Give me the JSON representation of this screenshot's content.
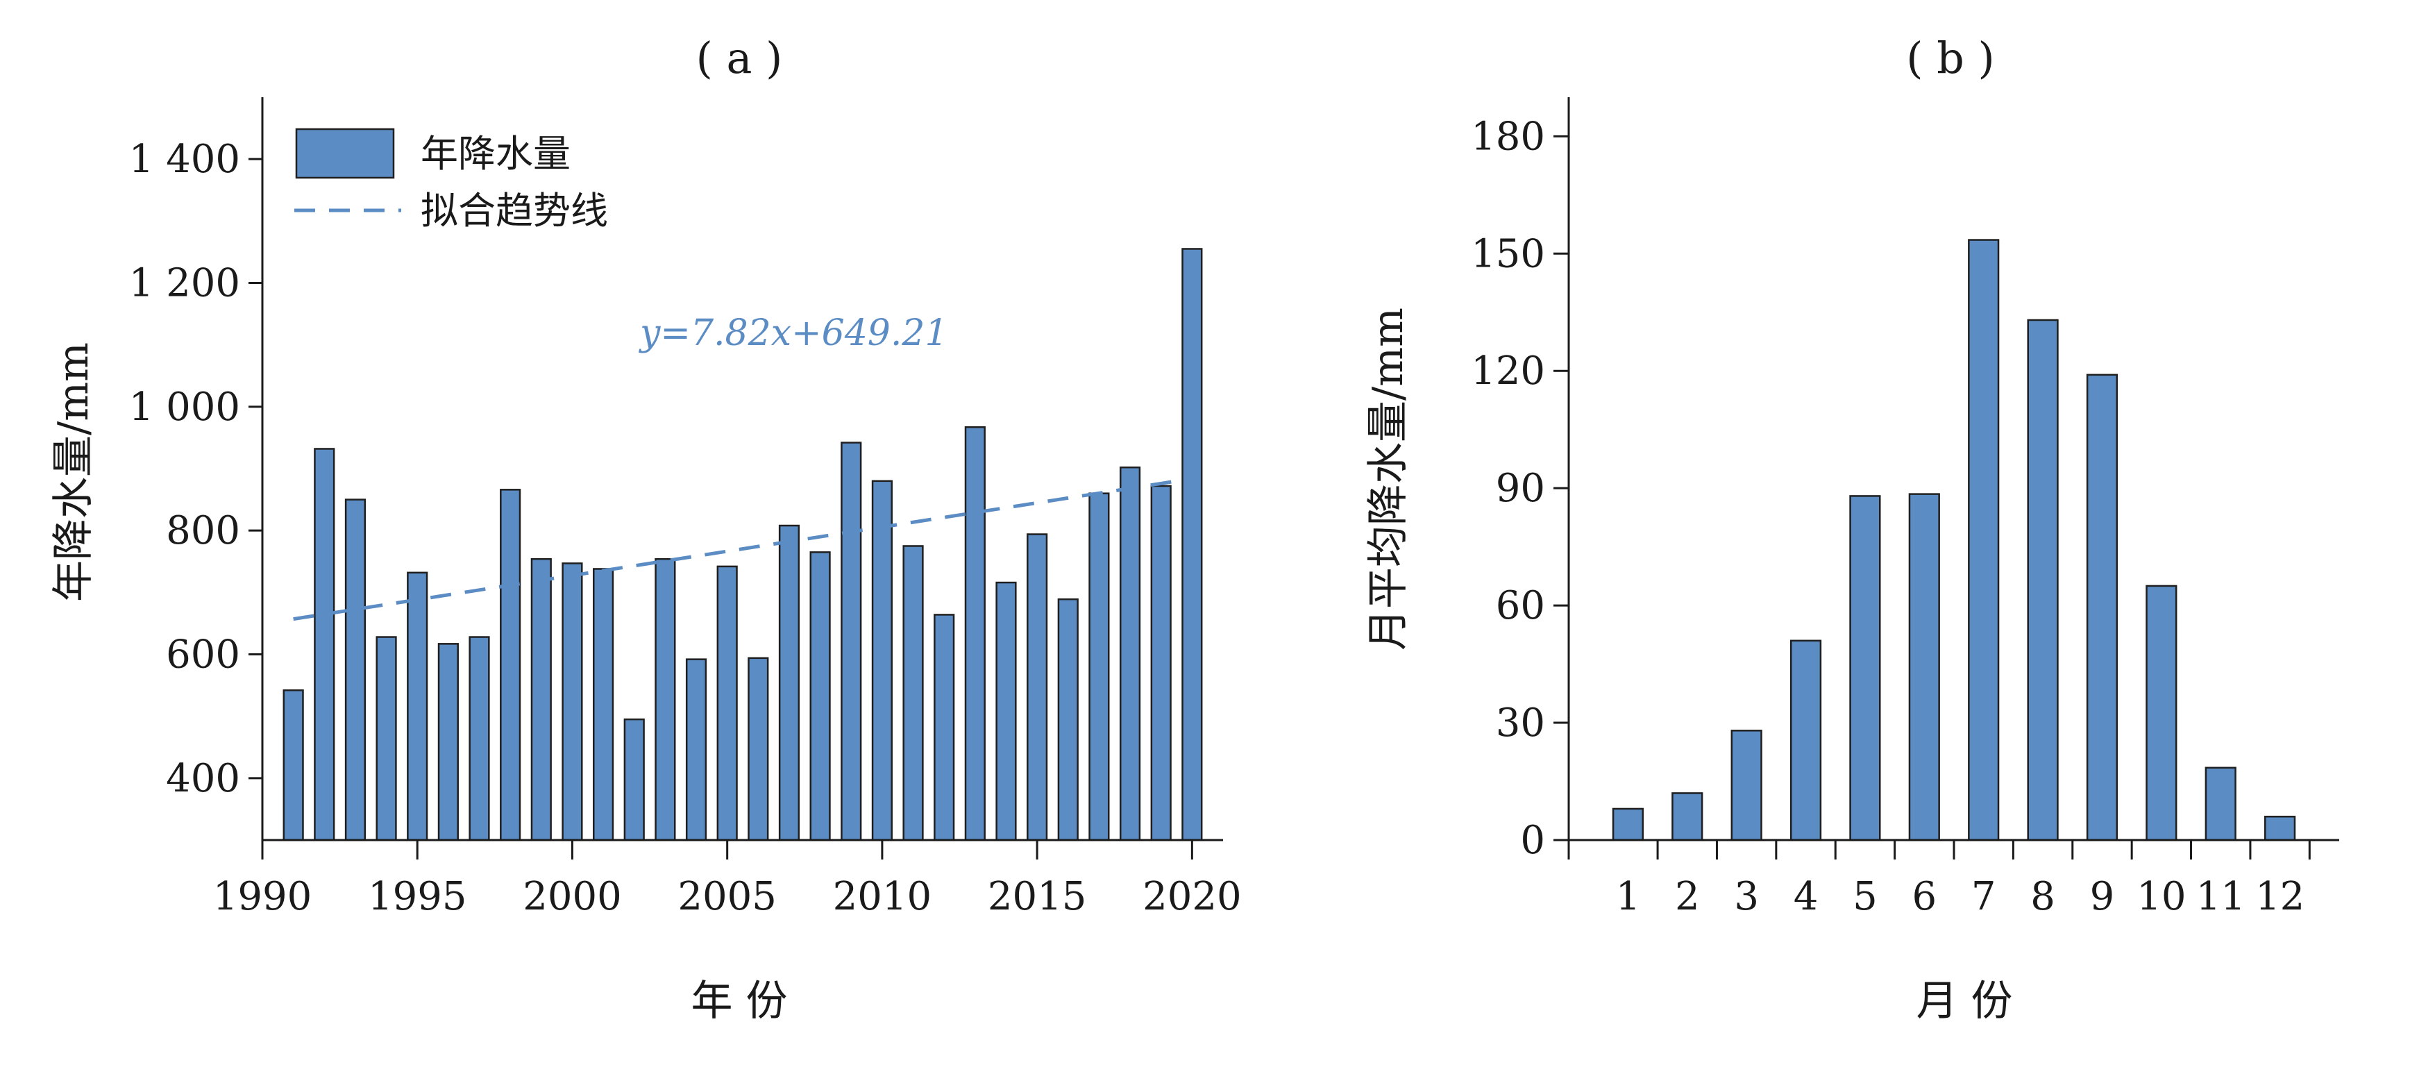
{
  "chart_data": [
    {
      "type": "bar",
      "title": "( a )",
      "xlabel": "年 份",
      "ylabel": "年降水量/mm",
      "x": [
        1991,
        1992,
        1993,
        1994,
        1995,
        1996,
        1997,
        1998,
        1999,
        2000,
        2001,
        2002,
        2003,
        2004,
        2005,
        2006,
        2007,
        2008,
        2009,
        2010,
        2011,
        2012,
        2013,
        2014,
        2015,
        2016,
        2017,
        2018,
        2019,
        2020
      ],
      "values": [
        542,
        932,
        850,
        628,
        732,
        617,
        628,
        866,
        754,
        747,
        738,
        495,
        754,
        592,
        742,
        594,
        808,
        765,
        942,
        880,
        775,
        664,
        967,
        716,
        794,
        689,
        860,
        902,
        872,
        1255
      ],
      "xlim": [
        1990,
        2021
      ],
      "ylim": [
        300,
        1500
      ],
      "xticks": [
        1990,
        1995,
        2000,
        2005,
        2010,
        2015,
        2020
      ],
      "xtick_labels": [
        "1990",
        "1995",
        "2000",
        "2005",
        "2010",
        "2015",
        "2020"
      ],
      "yticks": [
        400,
        600,
        800,
        1000,
        1200,
        1400
      ],
      "ytick_labels": [
        "400",
        "600",
        "800",
        "1 000",
        "1 200",
        "1 400"
      ],
      "legend": {
        "bar_label": "年降水量",
        "line_label": "拟合趋势线",
        "placement": "top-left"
      },
      "trend": {
        "slope": 7.82,
        "intercept": 649.21,
        "x_start": 1991,
        "x_end": 2020,
        "equation": "y=7.82x+649.21"
      },
      "colors": {
        "bar": "#5b8cc4",
        "bar_edge": "#1f1f1f",
        "trend": "#5b8cc4",
        "equation": "#5b8cc4",
        "axis": "#1a1a1a"
      }
    },
    {
      "type": "bar",
      "title": "( b )",
      "xlabel": "月 份",
      "ylabel": "月平均降水量/mm",
      "categories": [
        "1",
        "2",
        "3",
        "4",
        "5",
        "6",
        "7",
        "8",
        "9",
        "10",
        "11",
        "12"
      ],
      "values": [
        8,
        12,
        28,
        51,
        88,
        88.5,
        153.5,
        133,
        119,
        65,
        18.5,
        6
      ],
      "ylim": [
        0,
        190
      ],
      "yticks": [
        0,
        30,
        60,
        90,
        120,
        150,
        180
      ],
      "ytick_labels": [
        "0",
        "30",
        "60",
        "90",
        "120",
        "150",
        "180"
      ],
      "colors": {
        "bar": "#5b8cc4",
        "bar_edge": "#1f1f1f",
        "axis": "#1a1a1a"
      }
    }
  ]
}
